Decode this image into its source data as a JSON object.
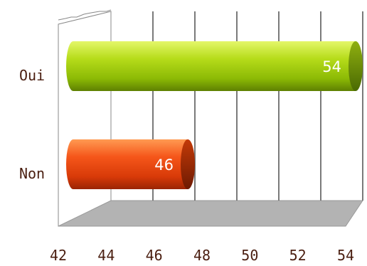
{
  "chart_data": {
    "type": "bar",
    "orientation": "horizontal",
    "style": "3d-cylinder",
    "categories": [
      "Oui",
      "Non"
    ],
    "values": [
      54,
      46
    ],
    "data_labels": [
      "54",
      "46"
    ],
    "colors": [
      "#9ecb08",
      "#f04a0c"
    ],
    "xlim": [
      42,
      54
    ],
    "xticks": [
      "42",
      "44",
      "46",
      "48",
      "50",
      "52",
      "54"
    ],
    "grid": true,
    "legend": "none",
    "title": "",
    "xlabel": "",
    "ylabel": ""
  }
}
